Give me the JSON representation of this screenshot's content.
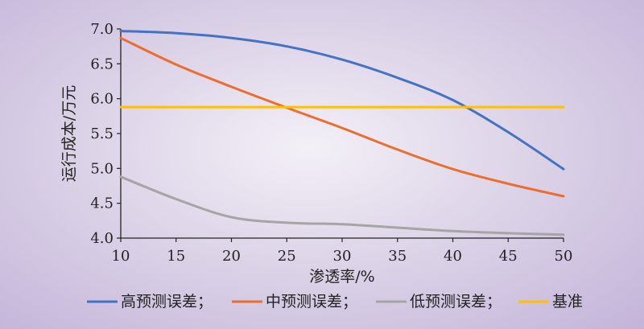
{
  "chart_data": {
    "type": "line",
    "xlabel": "渗透率/%",
    "ylabel": "运行成本/万元",
    "xlim": [
      10,
      50
    ],
    "ylim": [
      4.0,
      7.0
    ],
    "xticks": [
      "10",
      "15",
      "20",
      "25",
      "30",
      "35",
      "40",
      "45",
      "50"
    ],
    "yticks": [
      "4.0",
      "4.5",
      "5.0",
      "5.5",
      "6.0",
      "6.5",
      "7.0"
    ],
    "grid": false,
    "legend_position": "bottom",
    "series": [
      {
        "name": "高预测误差；",
        "color": "#4472c4",
        "x": [
          10,
          15,
          20,
          25,
          30,
          35,
          40,
          45,
          50
        ],
        "y": [
          6.97,
          6.94,
          6.87,
          6.75,
          6.56,
          6.3,
          5.98,
          5.52,
          4.99
        ]
      },
      {
        "name": "中预测误差；",
        "color": "#ed6d2f",
        "x": [
          10,
          15,
          20,
          25,
          30,
          35,
          40,
          45,
          50
        ],
        "y": [
          6.87,
          6.49,
          6.17,
          5.87,
          5.58,
          5.27,
          4.99,
          4.78,
          4.6
        ]
      },
      {
        "name": "低预测误差；",
        "color": "#a5a5a5",
        "x": [
          10,
          15,
          20,
          25,
          30,
          35,
          40,
          45,
          50
        ],
        "y": [
          4.88,
          4.56,
          4.3,
          4.22,
          4.2,
          4.15,
          4.1,
          4.07,
          4.05
        ]
      },
      {
        "name": "基准",
        "color": "#ffc000",
        "x": [
          10,
          50
        ],
        "y": [
          5.88,
          5.88
        ]
      }
    ]
  }
}
